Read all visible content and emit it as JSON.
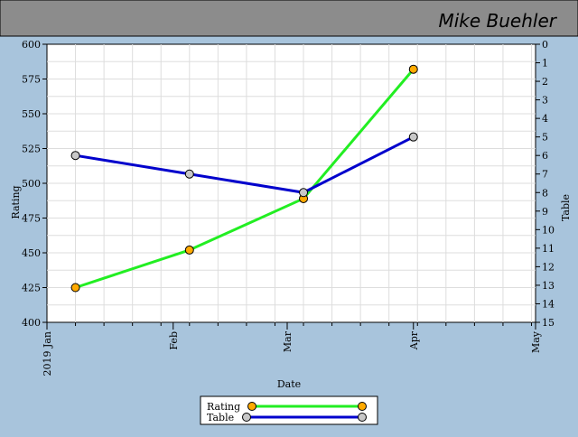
{
  "header": {
    "player_name": "Mike Buehler"
  },
  "colors": {
    "page_background": "#a8c4dc",
    "header_background": "#8c8c8c",
    "plot_background": "#ffffff",
    "grid": "#dddddd",
    "rating_line": "#22ee22",
    "rating_marker": "#ffaa00",
    "table_line": "#0000cc",
    "table_marker": "#c8c8c8"
  },
  "chart_data": {
    "type": "line",
    "title": "",
    "xlabel": "Date",
    "ylabel": "Rating",
    "y2label": "Table",
    "x_tick_labels": [
      "2019 Jan",
      "Feb",
      "Mar",
      "Apr",
      "May"
    ],
    "xlim": [
      "2019-01-01",
      "2019-05-01"
    ],
    "ylim": [
      400,
      600
    ],
    "y_ticks": [
      400,
      425,
      450,
      475,
      500,
      525,
      550,
      575,
      600
    ],
    "y2lim": [
      0,
      15
    ],
    "y2_inverted": true,
    "y2_ticks": [
      0,
      1,
      2,
      3,
      4,
      5,
      6,
      7,
      8,
      9,
      10,
      11,
      12,
      13,
      14,
      15
    ],
    "grid": true,
    "legend_position": "bottom-center",
    "series": [
      {
        "name": "Rating",
        "axis": "left",
        "x": [
          "2019-01-08",
          "2019-02-05",
          "2019-03-05",
          "2019-04-01"
        ],
        "values": [
          425,
          452,
          489,
          582
        ]
      },
      {
        "name": "Table",
        "axis": "right",
        "x": [
          "2019-01-08",
          "2019-02-05",
          "2019-03-05",
          "2019-04-01"
        ],
        "values": [
          6,
          7,
          8,
          5
        ]
      }
    ]
  }
}
